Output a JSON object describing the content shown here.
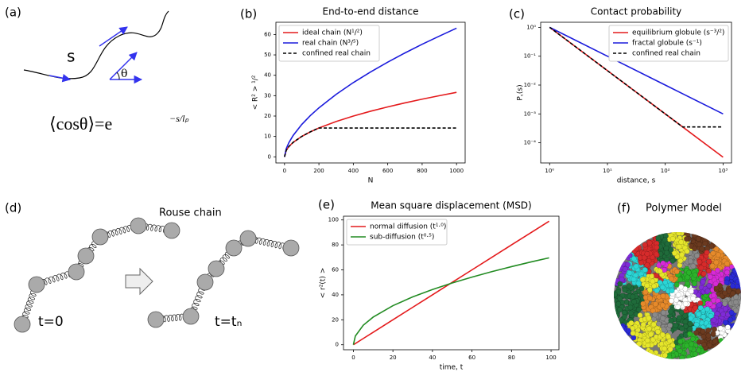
{
  "panel_labels": [
    "(a)",
    "(b)",
    "(c)",
    "(d)",
    "(e)",
    "(f)"
  ],
  "diagram_a": {
    "arc_label": "s",
    "angle_label": "θ",
    "formula": "⟨cosθ⟩=e",
    "formula_exponent": "−s/lₚ"
  },
  "diagram_d": {
    "title": "Rouse chain",
    "start_label": "t=0",
    "end_label": "t=tₙ"
  },
  "diagram_f": {
    "title": "Polymer Model"
  },
  "chart_data": [
    {
      "type": "line",
      "title": "End-to-end distance",
      "x_label": "N",
      "y_label": "< R² > ¹/²",
      "x": [
        0,
        10,
        25,
        50,
        100,
        150,
        200,
        300,
        400,
        500,
        600,
        700,
        800,
        900,
        1000
      ],
      "series": [
        {
          "name": "ideal chain (N¹/²)",
          "color": "#e41a1c",
          "linestyle": "solid",
          "values": [
            0,
            3.16,
            5,
            7.07,
            10,
            12.25,
            14.14,
            17.32,
            20,
            22.36,
            24.49,
            26.46,
            28.28,
            30,
            31.62
          ]
        },
        {
          "name": "real chain (N³/⁵)",
          "color": "#1a1adc",
          "linestyle": "solid",
          "values": [
            0,
            3.98,
            6.9,
            10.46,
            15.85,
            20.21,
            24.02,
            30.64,
            36.41,
            41.63,
            46.44,
            50.94,
            55.2,
            59.2,
            63.1
          ]
        },
        {
          "name": "confined real chain",
          "color": "#000000",
          "linestyle": "dashed",
          "values": [
            0,
            3.16,
            5,
            7.07,
            10,
            12.25,
            14.14,
            14.14,
            14.14,
            14.14,
            14.14,
            14.14,
            14.14,
            14.14,
            14.14
          ]
        }
      ],
      "xlim": [
        -50,
        1050
      ],
      "xticks": [
        0,
        200,
        400,
        600,
        800,
        1000
      ],
      "ylim": [
        -3,
        66
      ],
      "yticks": [
        0,
        10,
        20,
        30,
        40,
        50,
        60
      ],
      "legend": "upper left"
    },
    {
      "type": "line",
      "title": "Contact probability",
      "x_label": "distance, s",
      "y_label": "P꜀(s)",
      "xscale": "log",
      "yscale": "log",
      "x": [
        1,
        10,
        100,
        200,
        1000
      ],
      "series": [
        {
          "name": "equilibrium globule (s⁻³/²)",
          "color": "#e41a1c",
          "linestyle": "solid",
          "values": [
            1,
            0.0316,
            0.001,
            0.000354,
            3.16e-05
          ]
        },
        {
          "name": "fractal globule (s⁻¹)",
          "color": "#1a1adc",
          "linestyle": "solid",
          "values": [
            1,
            0.1,
            0.01,
            0.005,
            0.001
          ]
        },
        {
          "name": "confined real chain",
          "color": "#000000",
          "linestyle": "dashed",
          "values": [
            1,
            0.0316,
            0.001,
            0.000354,
            0.000354
          ]
        }
      ],
      "xlim": [
        0.7,
        1400
      ],
      "xticks": [
        {
          "value": 1,
          "label": "10⁰"
        },
        {
          "value": 10,
          "label": "10¹"
        },
        {
          "value": 100,
          "label": "10²"
        },
        {
          "value": 1000,
          "label": "10³"
        }
      ],
      "ylim": [
        2e-05,
        1.5
      ],
      "yticks": [
        {
          "value": 0.0001,
          "label": "10⁻⁴"
        },
        {
          "value": 0.001,
          "label": "10⁻³"
        },
        {
          "value": 0.01,
          "label": "10⁻²"
        },
        {
          "value": 0.1,
          "label": "10⁻¹"
        },
        {
          "value": 1,
          "label": "10⁰"
        }
      ],
      "legend": "upper right"
    },
    {
      "type": "line",
      "title": "Mean square displacement (MSD)",
      "x_label": "time, t",
      "y_label": "< r²(t) >",
      "x": [
        0,
        1,
        5,
        10,
        20,
        30,
        40,
        50,
        60,
        70,
        80,
        90,
        99
      ],
      "series": [
        {
          "name": "normal diffusion (t¹·⁰)",
          "color": "#e41a1c",
          "linestyle": "solid",
          "values": [
            0,
            1,
            5,
            10,
            20,
            30,
            40,
            50,
            60,
            70,
            80,
            90,
            99
          ]
        },
        {
          "name": "sub-diffusion (t⁰·⁵)",
          "color": "#228b22",
          "linestyle": "solid",
          "values": [
            0,
            7,
            15.65,
            22.14,
            31.3,
            38.34,
            44.27,
            49.5,
            54.22,
            58.57,
            62.61,
            66.41,
            69.65
          ]
        }
      ],
      "xlim": [
        -5,
        104
      ],
      "xticks": [
        0,
        20,
        40,
        60,
        80,
        100
      ],
      "ylim": [
        -4,
        103
      ],
      "yticks": [
        0,
        20,
        40,
        60,
        80,
        100
      ],
      "legend": "upper left"
    }
  ]
}
